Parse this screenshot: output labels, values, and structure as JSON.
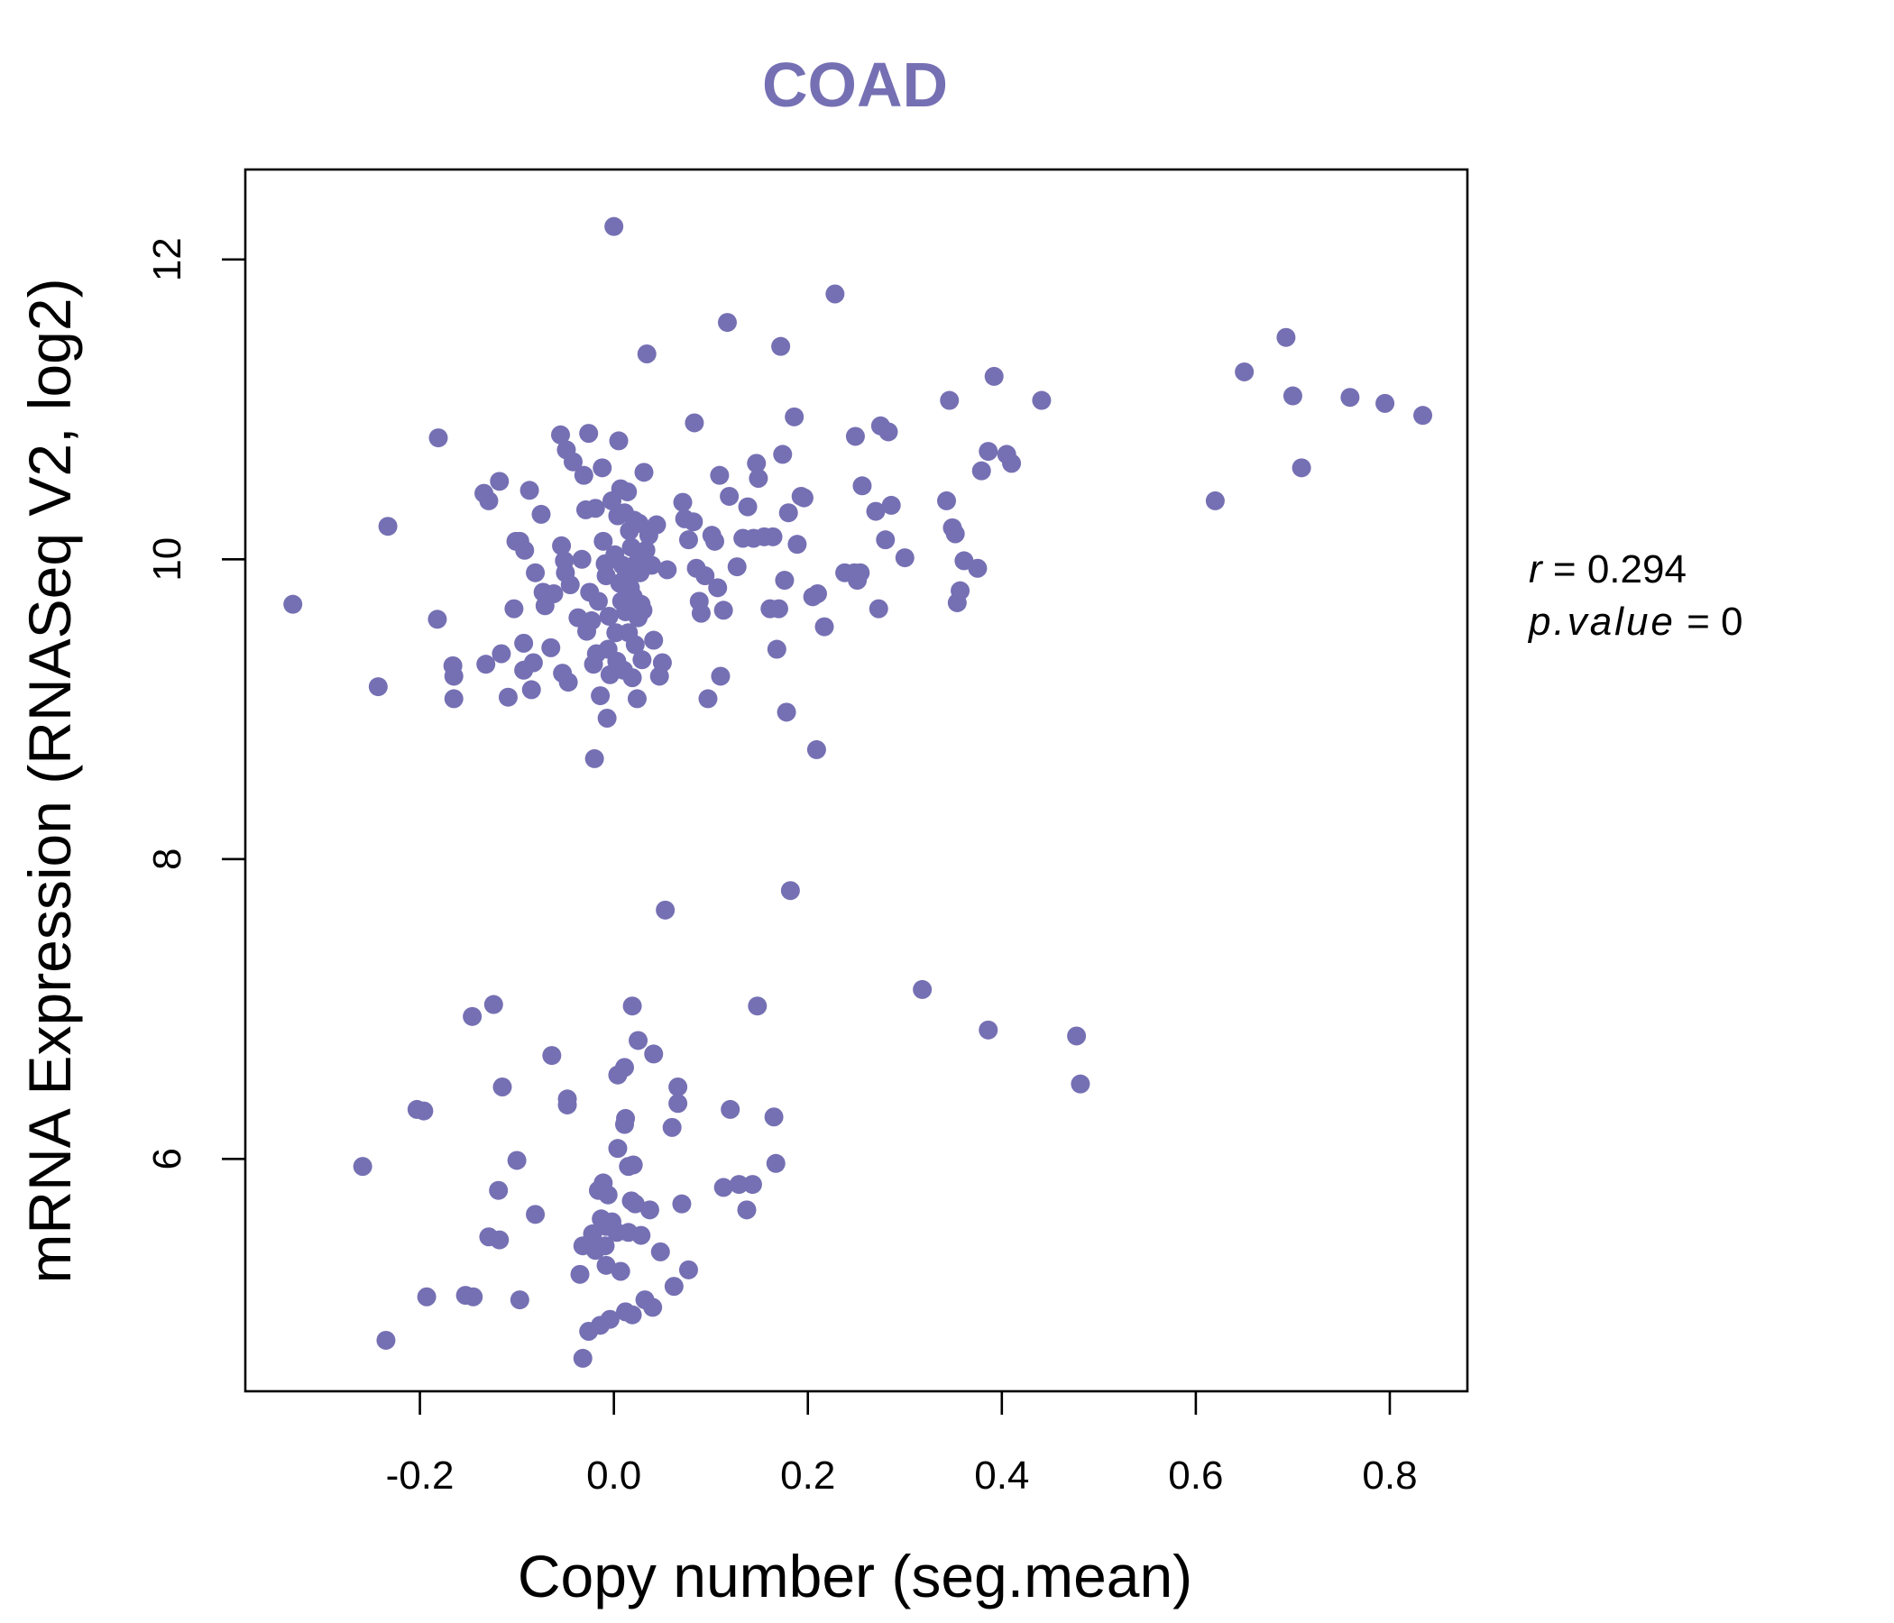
{
  "chart_data": {
    "type": "scatter",
    "title": "COAD",
    "xlabel": "Copy number (seg.mean)",
    "ylabel": "mRNA Expression (RNASeq V2, log2)",
    "xlim": [
      -0.38,
      0.88
    ],
    "ylim": [
      4.45,
      12.6
    ],
    "xticks": [
      -0.2,
      0.0,
      0.2,
      0.4,
      0.6,
      0.8
    ],
    "xtick_labels": [
      "-0.2",
      "0.0",
      "0.2",
      "0.4",
      "0.6",
      "0.8"
    ],
    "yticks": [
      6,
      8,
      10,
      12
    ],
    "ytick_labels": [
      "6",
      "8",
      "10",
      "12"
    ],
    "grid": false,
    "legend": "none",
    "color": "#7570b3",
    "annotation": {
      "r_label": "r",
      "r_value": "0.294",
      "p_label": "p.value",
      "p_value": "0"
    },
    "points": [
      [
        -0.331,
        9.7
      ],
      [
        -0.243,
        9.15
      ],
      [
        -0.233,
        10.22
      ],
      [
        -0.181,
        10.81
      ],
      [
        -0.182,
        9.6
      ],
      [
        -0.166,
        9.29
      ],
      [
        -0.165,
        9.22
      ],
      [
        -0.165,
        9.07
      ],
      [
        -0.134,
        10.44
      ],
      [
        -0.132,
        9.3
      ],
      [
        -0.129,
        10.39
      ],
      [
        -0.118,
        10.52
      ],
      [
        -0.116,
        9.37
      ],
      [
        -0.109,
        9.08
      ],
      [
        -0.101,
        10.12
      ],
      [
        -0.103,
        9.67
      ],
      [
        -0.097,
        10.12
      ],
      [
        -0.093,
        9.44
      ],
      [
        -0.093,
        9.26
      ],
      [
        -0.092,
        10.06
      ],
      [
        -0.087,
        10.46
      ],
      [
        -0.085,
        9.13
      ],
      [
        -0.083,
        9.31
      ],
      [
        -0.081,
        9.91
      ],
      [
        -0.075,
        10.3
      ],
      [
        -0.073,
        9.78
      ],
      [
        -0.071,
        9.69
      ],
      [
        -0.065,
        9.41
      ],
      [
        -0.062,
        9.77
      ],
      [
        -0.055,
        10.83
      ],
      [
        -0.054,
        10.09
      ],
      [
        -0.053,
        9.24
      ],
      [
        -0.051,
        9.99
      ],
      [
        -0.05,
        9.91
      ],
      [
        -0.049,
        10.73
      ],
      [
        -0.047,
        9.18
      ],
      [
        -0.045,
        9.83
      ],
      [
        -0.042,
        10.65
      ],
      [
        -0.037,
        9.61
      ],
      [
        -0.033,
        10.0
      ],
      [
        -0.031,
        10.56
      ],
      [
        -0.029,
        10.33
      ],
      [
        -0.028,
        9.52
      ],
      [
        -0.026,
        10.84
      ],
      [
        -0.025,
        9.78
      ],
      [
        -0.023,
        9.59
      ],
      [
        -0.021,
        9.3
      ],
      [
        -0.02,
        8.67
      ],
      [
        -0.019,
        10.34
      ],
      [
        -0.018,
        9.37
      ],
      [
        -0.016,
        9.72
      ],
      [
        -0.014,
        9.09
      ],
      [
        -0.012,
        10.61
      ],
      [
        -0.011,
        10.12
      ],
      [
        -0.009,
        9.97
      ],
      [
        -0.008,
        9.89
      ],
      [
        -0.007,
        8.94
      ],
      [
        -0.006,
        9.4
      ],
      [
        -0.005,
        9.62
      ],
      [
        -0.004,
        9.23
      ],
      [
        -0.002,
        10.39
      ],
      [
        0.0,
        12.22
      ],
      [
        0.001,
        10.03
      ],
      [
        0.002,
        9.51
      ],
      [
        0.003,
        9.32
      ],
      [
        0.004,
        10.29
      ],
      [
        0.005,
        10.79
      ],
      [
        0.006,
        9.84
      ],
      [
        0.007,
        10.47
      ],
      [
        0.008,
        9.72
      ],
      [
        0.009,
        9.96
      ],
      [
        0.01,
        9.26
      ],
      [
        0.011,
        10.31
      ],
      [
        0.012,
        9.65
      ],
      [
        0.013,
        9.9
      ],
      [
        0.014,
        10.45
      ],
      [
        0.015,
        9.51
      ],
      [
        0.016,
        10.19
      ],
      [
        0.017,
        9.81
      ],
      [
        0.018,
        10.08
      ],
      [
        0.019,
        9.21
      ],
      [
        0.02,
        9.75
      ],
      [
        0.021,
        10.26
      ],
      [
        0.022,
        9.43
      ],
      [
        0.023,
        9.97
      ],
      [
        0.024,
        9.07
      ],
      [
        0.025,
        9.61
      ],
      [
        0.026,
        10.24
      ],
      [
        0.027,
        9.91
      ],
      [
        0.028,
        9.7
      ],
      [
        0.029,
        9.33
      ],
      [
        0.03,
        9.66
      ],
      [
        0.031,
        10.58
      ],
      [
        0.033,
        10.06
      ],
      [
        0.034,
        11.37
      ],
      [
        0.036,
        10.16
      ],
      [
        0.039,
        9.96
      ],
      [
        0.041,
        9.46
      ],
      [
        0.044,
        10.23
      ],
      [
        0.047,
        9.22
      ],
      [
        0.05,
        9.31
      ],
      [
        0.055,
        9.93
      ],
      [
        0.071,
        10.38
      ],
      [
        0.073,
        10.27
      ],
      [
        0.077,
        10.13
      ],
      [
        0.082,
        10.25
      ],
      [
        0.083,
        10.91
      ],
      [
        0.085,
        9.94
      ],
      [
        0.088,
        9.72
      ],
      [
        0.09,
        9.64
      ],
      [
        0.094,
        9.89
      ],
      [
        0.097,
        9.07
      ],
      [
        0.101,
        10.16
      ],
      [
        0.104,
        10.12
      ],
      [
        0.107,
        9.81
      ],
      [
        0.109,
        10.56
      ],
      [
        0.11,
        9.22
      ],
      [
        0.113,
        9.66
      ],
      [
        0.117,
        11.58
      ],
      [
        0.119,
        10.42
      ],
      [
        0.127,
        9.95
      ],
      [
        0.133,
        10.14
      ],
      [
        0.138,
        10.35
      ],
      [
        0.144,
        10.14
      ],
      [
        0.147,
        10.64
      ],
      [
        0.149,
        10.54
      ],
      [
        0.155,
        10.15
      ],
      [
        0.161,
        9.67
      ],
      [
        0.164,
        10.15
      ],
      [
        0.168,
        9.4
      ],
      [
        0.17,
        9.67
      ],
      [
        0.172,
        11.42
      ],
      [
        0.174,
        10.7
      ],
      [
        0.176,
        9.86
      ],
      [
        0.178,
        8.98
      ],
      [
        0.18,
        10.31
      ],
      [
        0.186,
        10.95
      ],
      [
        0.189,
        10.1
      ],
      [
        0.193,
        10.42
      ],
      [
        0.196,
        10.41
      ],
      [
        0.205,
        9.75
      ],
      [
        0.209,
        8.73
      ],
      [
        0.21,
        9.77
      ],
      [
        0.217,
        9.55
      ],
      [
        0.228,
        11.77
      ],
      [
        0.238,
        9.91
      ],
      [
        0.248,
        9.91
      ],
      [
        0.249,
        10.82
      ],
      [
        0.251,
        9.86
      ],
      [
        0.254,
        9.91
      ],
      [
        0.256,
        10.49
      ],
      [
        0.27,
        10.32
      ],
      [
        0.273,
        9.67
      ],
      [
        0.275,
        10.89
      ],
      [
        0.28,
        10.13
      ],
      [
        0.283,
        10.85
      ],
      [
        0.286,
        10.36
      ],
      [
        0.3,
        10.01
      ],
      [
        0.343,
        10.39
      ],
      [
        0.346,
        11.06
      ],
      [
        0.349,
        10.21
      ],
      [
        0.352,
        10.17
      ],
      [
        0.354,
        9.71
      ],
      [
        0.357,
        9.79
      ],
      [
        0.361,
        9.99
      ],
      [
        0.375,
        9.94
      ],
      [
        0.379,
        10.59
      ],
      [
        0.386,
        10.72
      ],
      [
        0.392,
        11.22
      ],
      [
        0.405,
        10.7
      ],
      [
        0.41,
        10.64
      ],
      [
        0.441,
        11.06
      ],
      [
        0.62,
        10.39
      ],
      [
        0.65,
        11.25
      ],
      [
        0.693,
        11.48
      ],
      [
        0.7,
        11.09
      ],
      [
        0.709,
        10.61
      ],
      [
        0.759,
        11.08
      ],
      [
        0.795,
        11.04
      ],
      [
        0.834,
        10.96
      ],
      [
        0.182,
        7.79
      ],
      [
        0.053,
        7.66
      ],
      [
        0.318,
        7.13
      ],
      [
        0.148,
        7.02
      ],
      [
        0.386,
        6.86
      ],
      [
        0.477,
        6.82
      ],
      [
        0.481,
        6.5
      ],
      [
        -0.124,
        7.03
      ],
      [
        -0.146,
        6.95
      ],
      [
        -0.064,
        6.69
      ],
      [
        -0.115,
        6.48
      ],
      [
        -0.203,
        6.33
      ],
      [
        -0.196,
        6.32
      ],
      [
        -0.048,
        6.4
      ],
      [
        -0.048,
        6.36
      ],
      [
        -0.1,
        5.99
      ],
      [
        -0.259,
        5.95
      ],
      [
        -0.119,
        5.79
      ],
      [
        -0.081,
        5.63
      ],
      [
        -0.129,
        5.48
      ],
      [
        -0.118,
        5.46
      ],
      [
        -0.193,
        5.08
      ],
      [
        -0.153,
        5.09
      ],
      [
        -0.145,
        5.08
      ],
      [
        -0.097,
        5.06
      ],
      [
        -0.235,
        4.79
      ],
      [
        0.019,
        7.02
      ],
      [
        0.025,
        6.79
      ],
      [
        0.041,
        6.7
      ],
      [
        0.011,
        6.61
      ],
      [
        0.004,
        6.56
      ],
      [
        0.066,
        6.48
      ],
      [
        0.066,
        6.37
      ],
      [
        0.06,
        6.21
      ],
      [
        0.012,
        6.27
      ],
      [
        0.011,
        6.23
      ],
      [
        0.004,
        6.07
      ],
      [
        0.015,
        5.95
      ],
      [
        0.02,
        5.96
      ],
      [
        0.12,
        6.33
      ],
      [
        0.165,
        6.28
      ],
      [
        0.167,
        5.97
      ],
      [
        0.113,
        5.81
      ],
      [
        0.129,
        5.83
      ],
      [
        0.143,
        5.83
      ],
      [
        0.137,
        5.66
      ],
      [
        0.07,
        5.7
      ],
      [
        0.037,
        5.66
      ],
      [
        0.018,
        5.72
      ],
      [
        0.022,
        5.7
      ],
      [
        -0.016,
        5.79
      ],
      [
        -0.011,
        5.84
      ],
      [
        -0.006,
        5.76
      ],
      [
        -0.013,
        5.6
      ],
      [
        -0.008,
        5.55
      ],
      [
        -0.002,
        5.58
      ],
      [
        0.003,
        5.51
      ],
      [
        0.015,
        5.51
      ],
      [
        0.028,
        5.49
      ],
      [
        -0.022,
        5.5
      ],
      [
        -0.032,
        5.42
      ],
      [
        -0.019,
        5.39
      ],
      [
        -0.009,
        5.42
      ],
      [
        -0.008,
        5.29
      ],
      [
        0.007,
        5.25
      ],
      [
        -0.035,
        5.23
      ],
      [
        0.048,
        5.38
      ],
      [
        0.077,
        5.26
      ],
      [
        0.062,
        5.15
      ],
      [
        0.032,
        5.06
      ],
      [
        0.04,
        5.01
      ],
      [
        0.012,
        4.98
      ],
      [
        0.019,
        4.96
      ],
      [
        -0.004,
        4.93
      ],
      [
        -0.014,
        4.89
      ],
      [
        -0.026,
        4.85
      ],
      [
        -0.032,
        4.67
      ]
    ]
  }
}
